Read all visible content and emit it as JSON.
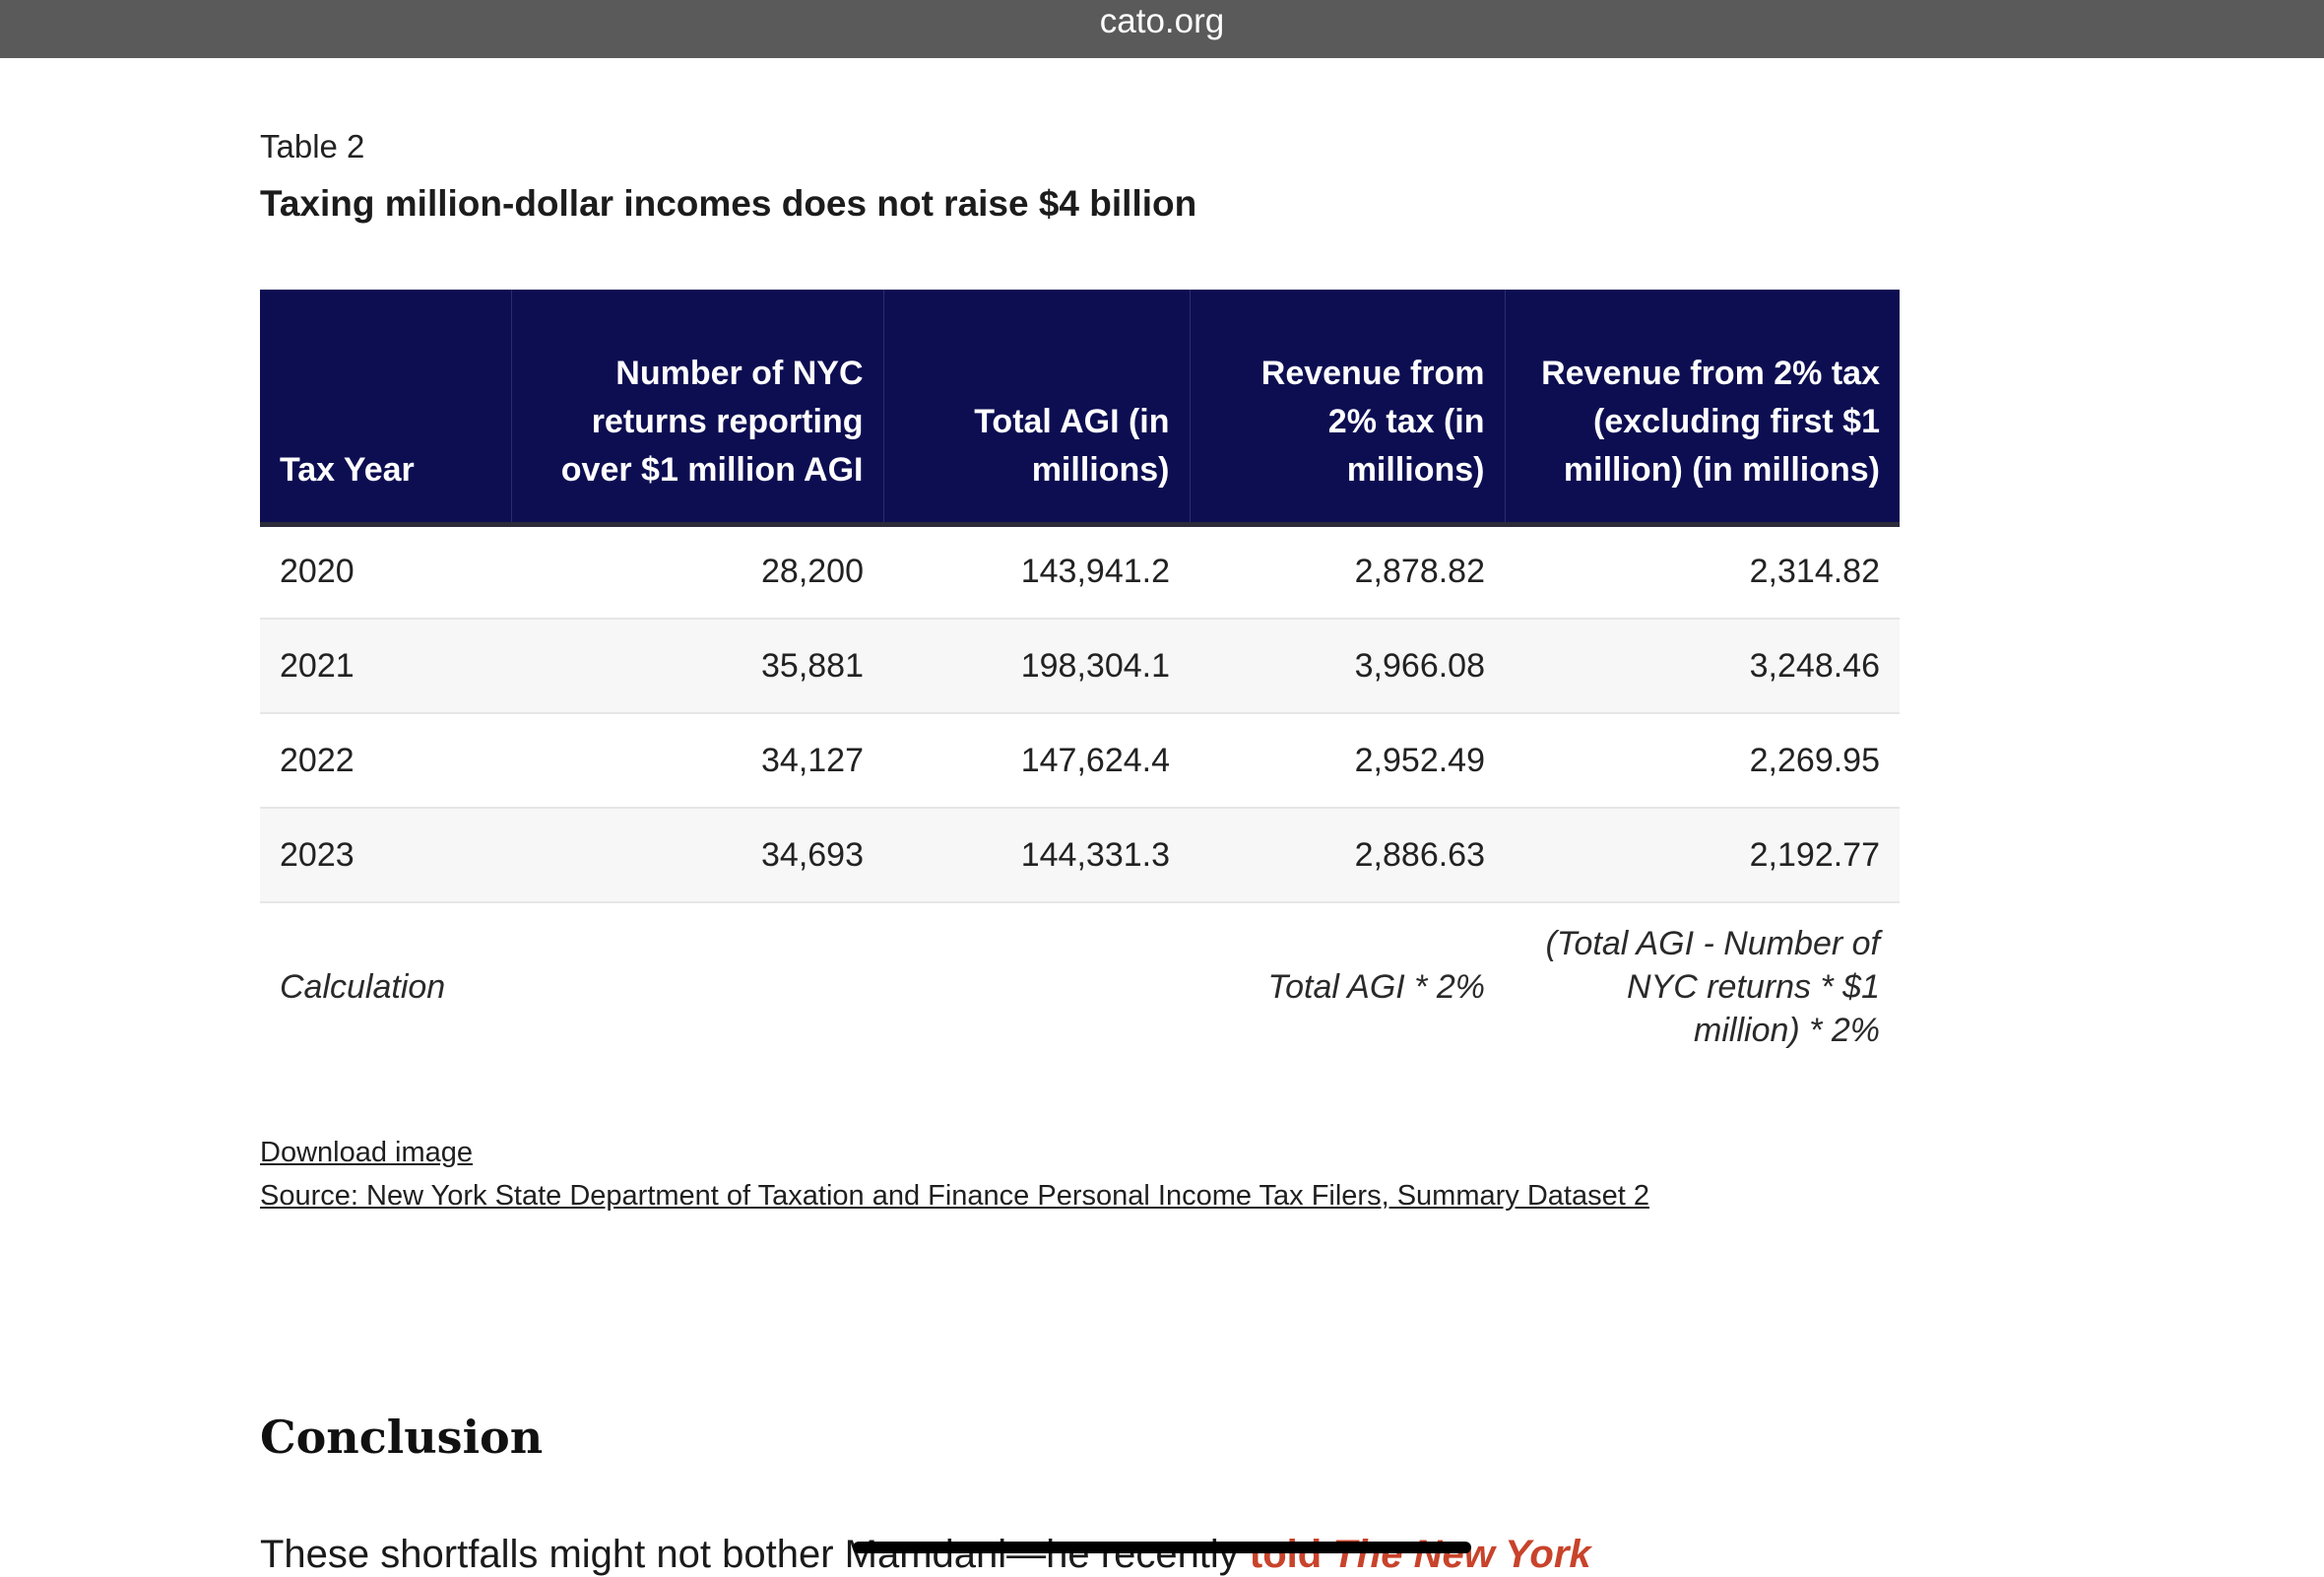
{
  "browser": {
    "domain": "cato.org"
  },
  "figure": {
    "label": "Table 2",
    "title": "Taxing million-dollar incomes does not raise $4 billion"
  },
  "table": {
    "headers": [
      "Tax Year",
      "Number of NYC returns reporting over $1 million AGI",
      "Total AGI (in millions)",
      "Revenue from 2% tax (in millions)",
      "Revenue from 2% tax (excluding first $1 million) (in millions)"
    ],
    "rows": [
      [
        "2020",
        "28,200",
        "143,941.2",
        "2,878.82",
        "2,314.82"
      ],
      [
        "2021",
        "35,881",
        "198,304.1",
        "3,966.08",
        "3,248.46"
      ],
      [
        "2022",
        "34,127",
        "147,624.4",
        "2,952.49",
        "2,269.95"
      ],
      [
        "2023",
        "34,693",
        "144,331.3",
        "2,886.63",
        "2,192.77"
      ]
    ],
    "calculation": {
      "label": "Calculation",
      "revenue_formula": "Total AGI * 2%",
      "revenue_excl_formula": "(Total AGI - Number of NYC returns * $1 million) * 2%"
    }
  },
  "links": {
    "download": "Download image",
    "source": "Source: New York State Department of Taxation and Finance Personal Income Tax Filers, Summary Dataset 2"
  },
  "article": {
    "section_heading": "Conclusion",
    "body_start": "These shortfalls might not bother Mamdani—he recently ",
    "body_link_text": "told ",
    "body_link_italic": "The New York"
  }
}
